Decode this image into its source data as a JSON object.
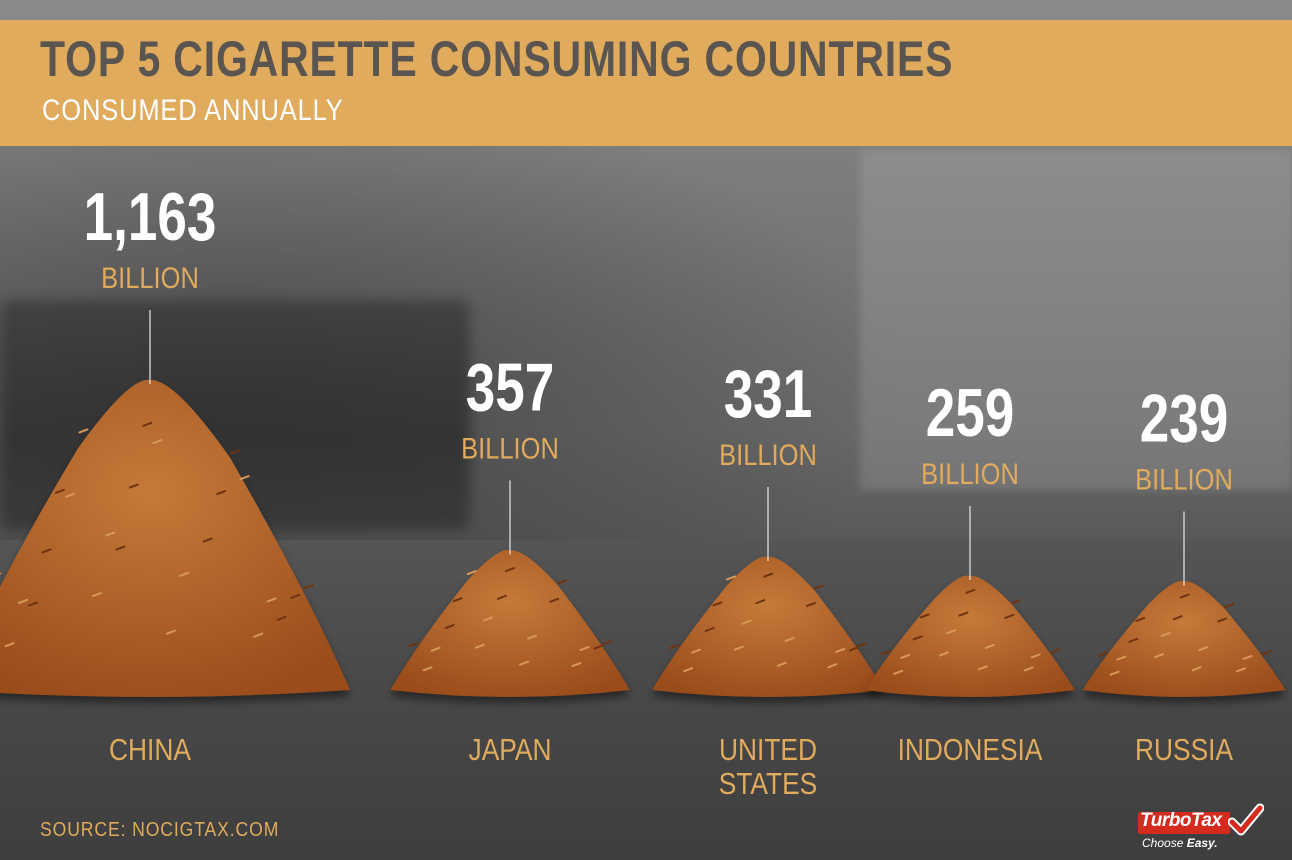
{
  "header": {
    "title": "TOP 5 CIGARETTE CONSUMING COUNTRIES",
    "subtitle": "CONSUMED ANNUALLY"
  },
  "footer": {
    "source": "SOURCE: NOCIGTAX.COM",
    "logo_word": "TurboTax",
    "logo_tagline_prefix": "Choose ",
    "logo_tagline_bold": "Easy."
  },
  "colors": {
    "accent": "#e0ab5c",
    "title_text": "#5a5550",
    "value_text": "#ffffff",
    "tobacco": "#9a4c1a",
    "tobacco_light": "#c57a3a",
    "logo_red": "#d52b1e"
  },
  "chart_data": {
    "type": "bar",
    "title": "TOP 5 CIGARETTE CONSUMING COUNTRIES",
    "subtitle": "CONSUMED ANNUALLY",
    "categories": [
      "CHINA",
      "JAPAN",
      "UNITED STATES",
      "INDONESIA",
      "RUSSIA"
    ],
    "category_lines": [
      [
        "CHINA"
      ],
      [
        "JAPAN"
      ],
      [
        "UNITED",
        "STATES"
      ],
      [
        "INDONESIA"
      ],
      [
        "RUSSIA"
      ]
    ],
    "values": [
      1163,
      357,
      331,
      259,
      239
    ],
    "value_labels": [
      "1,163",
      "357",
      "331",
      "259",
      "239"
    ],
    "unit": "BILLION",
    "source": "SOURCE: NOCIGTAX.COM"
  }
}
